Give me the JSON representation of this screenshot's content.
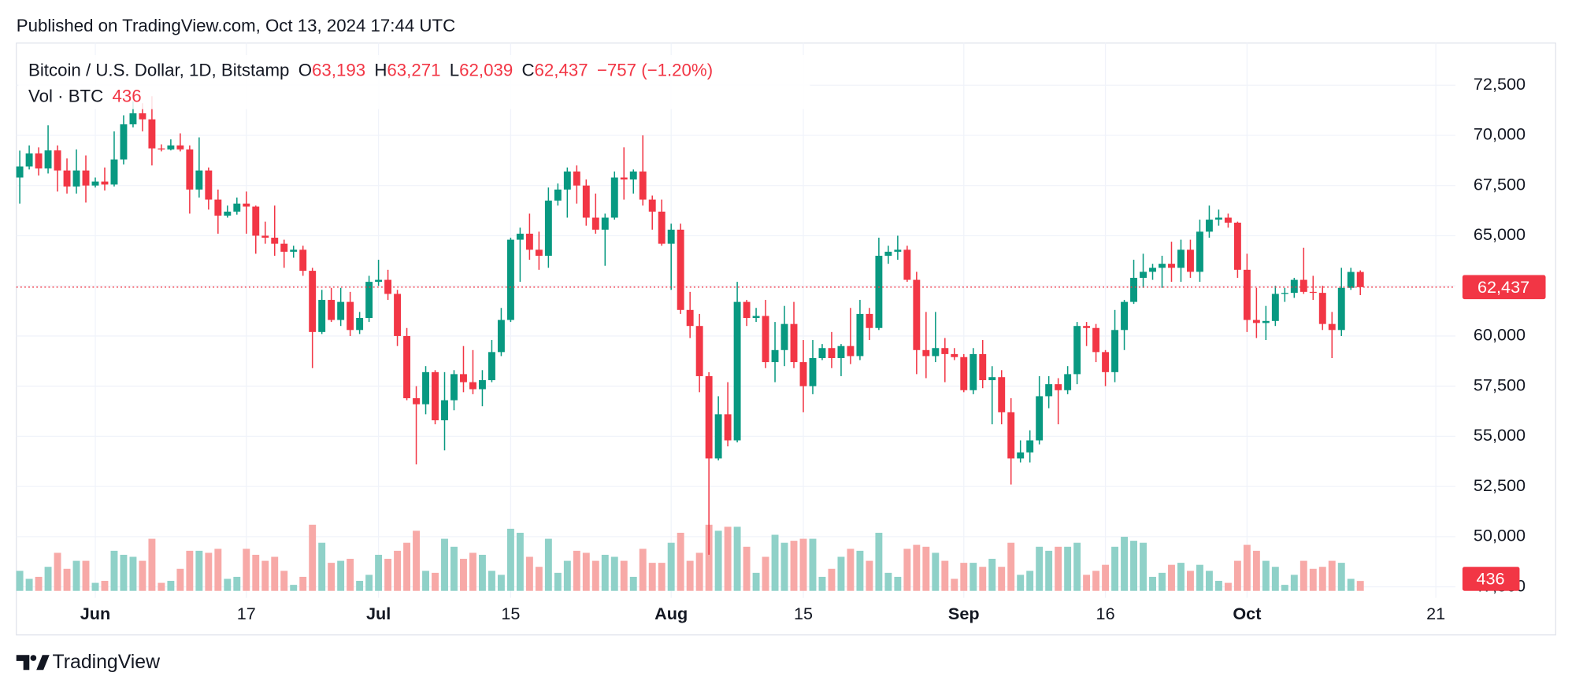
{
  "published": "Published on TradingView.com, Oct 13, 2024 17:44 UTC",
  "footer": "TradingView",
  "chart_data": {
    "type": "candlestick",
    "symbol": "Bitcoin / U.S. Dollar, 1D, Bitstamp",
    "legend": [
      {
        "key": "O",
        "value": "63,193"
      },
      {
        "key": "H",
        "value": "63,271"
      },
      {
        "key": "L",
        "value": "62,039"
      },
      {
        "key": "C",
        "value": "62,437"
      }
    ],
    "change": "−757 (−1.20%)",
    "volume_title": "Vol · BTC",
    "last_price_label": "62,437",
    "up_color": "#089981",
    "down_color": "#f23645",
    "volume_up_color": "#8fd1c8",
    "volume_down_color": "#f7a9a7",
    "grid": true,
    "xlim": [
      "2024-05-23",
      "2024-10-24"
    ],
    "xticks": [
      {
        "value": "2024-06-01",
        "label": "Jun"
      },
      {
        "value": "2024-06-17",
        "label": "17"
      },
      {
        "value": "2024-07-01",
        "label": "Jul"
      },
      {
        "value": "2024-07-15",
        "label": "15"
      },
      {
        "value": "2024-08-01",
        "label": "Aug"
      },
      {
        "value": "2024-08-15",
        "label": "15"
      },
      {
        "value": "2024-09-01",
        "label": "Sep"
      },
      {
        "value": "2024-09-16",
        "label": "16"
      },
      {
        "value": "2024-10-01",
        "label": "Oct"
      },
      {
        "value": "2024-10-21",
        "label": "21"
      }
    ],
    "ylim": [
      46950,
      74600
    ],
    "yticks": [
      {
        "value": 47500,
        "label": "47,500"
      },
      {
        "value": 50000,
        "label": "50,000"
      },
      {
        "value": 52500,
        "label": "52,500"
      },
      {
        "value": 55000,
        "label": "55,000"
      },
      {
        "value": 57500,
        "label": "57,500"
      },
      {
        "value": 60000,
        "label": "60,000"
      },
      {
        "value": 62500,
        "label": "62,500"
      },
      {
        "value": 65000,
        "label": "65,000"
      },
      {
        "value": 67500,
        "label": "67,500"
      },
      {
        "value": 70000,
        "label": "70,000"
      },
      {
        "value": 72500,
        "label": "72,500"
      }
    ],
    "volume_ylim": [
      0,
      6600
    ],
    "x": [
      "2024-05-24",
      "2024-05-25",
      "2024-05-26",
      "2024-05-27",
      "2024-05-28",
      "2024-05-29",
      "2024-05-30",
      "2024-05-31",
      "2024-06-01",
      "2024-06-02",
      "2024-06-03",
      "2024-06-04",
      "2024-06-05",
      "2024-06-06",
      "2024-06-07",
      "2024-06-08",
      "2024-06-09",
      "2024-06-10",
      "2024-06-11",
      "2024-06-12",
      "2024-06-13",
      "2024-06-14",
      "2024-06-15",
      "2024-06-16",
      "2024-06-17",
      "2024-06-18",
      "2024-06-19",
      "2024-06-20",
      "2024-06-21",
      "2024-06-22",
      "2024-06-23",
      "2024-06-24",
      "2024-06-25",
      "2024-06-26",
      "2024-06-27",
      "2024-06-28",
      "2024-06-29",
      "2024-06-30",
      "2024-07-01",
      "2024-07-02",
      "2024-07-03",
      "2024-07-04",
      "2024-07-05",
      "2024-07-06",
      "2024-07-07",
      "2024-07-08",
      "2024-07-09",
      "2024-07-10",
      "2024-07-11",
      "2024-07-12",
      "2024-07-13",
      "2024-07-14",
      "2024-07-15",
      "2024-07-16",
      "2024-07-17",
      "2024-07-18",
      "2024-07-19",
      "2024-07-20",
      "2024-07-21",
      "2024-07-22",
      "2024-07-23",
      "2024-07-24",
      "2024-07-25",
      "2024-07-26",
      "2024-07-27",
      "2024-07-28",
      "2024-07-29",
      "2024-07-30",
      "2024-07-31",
      "2024-08-01",
      "2024-08-02",
      "2024-08-03",
      "2024-08-04",
      "2024-08-05",
      "2024-08-06",
      "2024-08-07",
      "2024-08-08",
      "2024-08-09",
      "2024-08-10",
      "2024-08-11",
      "2024-08-12",
      "2024-08-13",
      "2024-08-14",
      "2024-08-15",
      "2024-08-16",
      "2024-08-17",
      "2024-08-18",
      "2024-08-19",
      "2024-08-20",
      "2024-08-21",
      "2024-08-22",
      "2024-08-23",
      "2024-08-24",
      "2024-08-25",
      "2024-08-26",
      "2024-08-27",
      "2024-08-28",
      "2024-08-29",
      "2024-08-30",
      "2024-08-31",
      "2024-09-01",
      "2024-09-02",
      "2024-09-03",
      "2024-09-04",
      "2024-09-05",
      "2024-09-06",
      "2024-09-07",
      "2024-09-08",
      "2024-09-09",
      "2024-09-10",
      "2024-09-11",
      "2024-09-12",
      "2024-09-13",
      "2024-09-14",
      "2024-09-15",
      "2024-09-16",
      "2024-09-17",
      "2024-09-18",
      "2024-09-19",
      "2024-09-20",
      "2024-09-21",
      "2024-09-22",
      "2024-09-23",
      "2024-09-24",
      "2024-09-25",
      "2024-09-26",
      "2024-09-27",
      "2024-09-28",
      "2024-09-29",
      "2024-09-30",
      "2024-10-01",
      "2024-10-02",
      "2024-10-03",
      "2024-10-04",
      "2024-10-05",
      "2024-10-06",
      "2024-10-07",
      "2024-10-08",
      "2024-10-09",
      "2024-10-10",
      "2024-10-11",
      "2024-10-12",
      "2024-10-13"
    ],
    "open": [
      67900,
      68450,
      69100,
      68350,
      69250,
      68250,
      67450,
      68250,
      67500,
      67700,
      67550,
      68800,
      70550,
      71100,
      70800,
      69350,
      69300,
      69500,
      69300,
      67300,
      68250,
      66800,
      66000,
      66200,
      66600,
      66450,
      65000,
      64900,
      64600,
      64200,
      64300,
      63250,
      60200,
      61800,
      60800,
      61700,
      60300,
      60900,
      62700,
      62800,
      62100,
      60000,
      56900,
      56600,
      58200,
      55800,
      56800,
      58100,
      57700,
      57350,
      57800,
      59200,
      60800,
      64800,
      65100,
      64300,
      64000,
      66750,
      67300,
      68200,
      67500,
      65900,
      65300,
      65900,
      67900,
      67800,
      68200,
      66800,
      66200,
      64600,
      65300,
      61300,
      60500,
      58000,
      53900,
      56100,
      54800,
      61700,
      60900,
      61000,
      58700,
      59300,
      60600,
      58700,
      57500,
      58900,
      59400,
      58900,
      59500,
      59000,
      61100,
      60400,
      64000,
      64200,
      64300,
      62800,
      59300,
      59000,
      59400,
      59100,
      58950,
      57300,
      59100,
      57800,
      57950,
      56200,
      53900,
      54200,
      54800,
      57000,
      57600,
      57300,
      58100,
      60500,
      60400,
      59200,
      58200,
      60300,
      61700,
      62900,
      63200,
      63400,
      63600,
      63400,
      64300,
      63200,
      65200,
      65800,
      65900,
      65650,
      63300,
      60800,
      60650,
      60750,
      62100,
      62150,
      62800,
      62200,
      62150,
      60600,
      60300,
      62400,
      63193
    ],
    "high": [
      69240,
      69500,
      69400,
      70500,
      69500,
      68850,
      69300,
      69000,
      67900,
      68400,
      70200,
      71000,
      71700,
      71600,
      71950,
      69550,
      69800,
      70100,
      69500,
      69900,
      68400,
      67300,
      66500,
      66900,
      67200,
      66500,
      65700,
      66500,
      64800,
      64500,
      64500,
      63400,
      62300,
      62400,
      62400,
      62200,
      61200,
      63000,
      63800,
      63300,
      62300,
      60400,
      57500,
      58500,
      58300,
      58200,
      58300,
      59500,
      59300,
      58300,
      59800,
      61400,
      64900,
      65400,
      66100,
      65200,
      67400,
      67600,
      68400,
      68500,
      67800,
      67100,
      66100,
      68200,
      69400,
      68300,
      70000,
      67000,
      66800,
      65600,
      65600,
      62200,
      61100,
      58200,
      57000,
      57700,
      62700,
      61800,
      61400,
      61800,
      60700,
      61500,
      61700,
      59800,
      59800,
      59600,
      60200,
      59600,
      61400,
      61800,
      61400,
      64900,
      64500,
      65000,
      64500,
      63200,
      61200,
      61200,
      59900,
      59400,
      59100,
      59400,
      59800,
      58500,
      58300,
      56900,
      54800,
      55300,
      58000,
      58000,
      57900,
      58500,
      60700,
      60700,
      60600,
      59300,
      61300,
      61800,
      63800,
      64100,
      63600,
      64000,
      64700,
      64800,
      64800,
      65800,
      66500,
      66300,
      66100,
      65700,
      64100,
      62400,
      61500,
      62500,
      62400,
      62900,
      64400,
      63000,
      62500,
      61200,
      63400,
      63400,
      63271
    ],
    "low": [
      66600,
      68300,
      68000,
      68100,
      67200,
      67100,
      67100,
      66650,
      67400,
      67250,
      67450,
      68550,
      70400,
      70200,
      68500,
      69200,
      69250,
      69200,
      66100,
      66900,
      66300,
      65100,
      65900,
      66050,
      65100,
      64100,
      64600,
      64000,
      63400,
      63900,
      63000,
      58400,
      60100,
      60700,
      60500,
      60000,
      60100,
      60700,
      62500,
      61800,
      59500,
      56800,
      53600,
      56100,
      55600,
      54300,
      56300,
      57200,
      57100,
      56500,
      57700,
      59000,
      60700,
      62700,
      63800,
      63300,
      63400,
      66500,
      65900,
      66600,
      65500,
      65100,
      63500,
      65800,
      66800,
      67100,
      66500,
      65300,
      64500,
      62300,
      61100,
      59900,
      57200,
      49100,
      53800,
      54500,
      54700,
      60500,
      60700,
      58400,
      57700,
      58500,
      58400,
      56200,
      57100,
      58800,
      58400,
      58000,
      58600,
      58800,
      59800,
      60300,
      63600,
      63800,
      62700,
      58100,
      57900,
      58700,
      57700,
      58800,
      57200,
      57100,
      57400,
      55600,
      55600,
      52600,
      53700,
      53700,
      54600,
      56400,
      55600,
      57100,
      57600,
      59500,
      58700,
      57500,
      57700,
      59300,
      61600,
      62400,
      62800,
      62400,
      62700,
      62700,
      62900,
      62700,
      64900,
      65500,
      65400,
      62900,
      60200,
      59900,
      59800,
      60500,
      61700,
      61900,
      62100,
      61800,
      60300,
      58900,
      60000,
      62300,
      62039
    ],
    "close": [
      68450,
      69100,
      68350,
      69250,
      68250,
      67450,
      68250,
      67500,
      67700,
      67550,
      68800,
      70550,
      71100,
      70800,
      69350,
      69300,
      69500,
      69300,
      67300,
      68250,
      66800,
      66000,
      66200,
      66600,
      66450,
      65000,
      64900,
      64600,
      64200,
      64300,
      63250,
      60200,
      61800,
      60800,
      61700,
      60300,
      60900,
      62700,
      62800,
      62100,
      60000,
      56900,
      56600,
      58200,
      55800,
      56800,
      58100,
      57700,
      57350,
      57800,
      59200,
      60800,
      64800,
      65100,
      64300,
      64000,
      66750,
      67300,
      68200,
      67500,
      65900,
      65300,
      65900,
      67900,
      67800,
      68200,
      66800,
      66200,
      64600,
      65300,
      61300,
      60500,
      58000,
      53900,
      56100,
      54800,
      61700,
      60900,
      61000,
      58700,
      59300,
      60600,
      58700,
      57500,
      58900,
      59400,
      58900,
      59500,
      59000,
      61100,
      60400,
      64000,
      64200,
      64300,
      62800,
      59300,
      59000,
      59400,
      59100,
      58950,
      57300,
      59100,
      57800,
      57950,
      56200,
      53900,
      54200,
      54800,
      57000,
      57600,
      57300,
      58100,
      60500,
      60400,
      59200,
      58200,
      60300,
      61700,
      62900,
      63200,
      63400,
      63600,
      63400,
      64300,
      63200,
      65200,
      65800,
      65900,
      65650,
      63300,
      60800,
      60650,
      60750,
      62100,
      62150,
      62800,
      62200,
      62150,
      60600,
      60300,
      62400,
      63193,
      62437
    ],
    "volume": [
      880,
      528,
      616,
      1056,
      1672,
      968,
      1320,
      1320,
      352,
      440,
      1760,
      1584,
      1496,
      1320,
      2288,
      352,
      440,
      968,
      1760,
      1760,
      1672,
      1848,
      528,
      616,
      1848,
      1584,
      1320,
      1496,
      880,
      264,
      616,
      2904,
      2112,
      1232,
      1320,
      1408,
      440,
      704,
      1584,
      1408,
      1760,
      2112,
      2640,
      880,
      792,
      2288,
      1936,
      1408,
      1672,
      1584,
      880,
      704,
      2728,
      2552,
      1496,
      1056,
      2288,
      792,
      1320,
      1760,
      1672,
      1320,
      1584,
      1496,
      1320,
      616,
      1848,
      1232,
      1232,
      2112,
      2552,
      1320,
      1672,
      2904,
      2640,
      2816,
      2816,
      1936,
      792,
      1496,
      2464,
      2112,
      2200,
      2288,
      2288,
      616,
      968,
      1496,
      1848,
      1760,
      1320,
      2552,
      792,
      616,
      1848,
      2024,
      1936,
      1672,
      1320,
      528,
      1232,
      1232,
      1056,
      1408,
      1056,
      2112,
      704,
      880,
      1936,
      1760,
      1936,
      1936,
      2112,
      704,
      880,
      1144,
      1936,
      2376,
      2200,
      2112,
      616,
      792,
      1144,
      1232,
      880,
      1144,
      880,
      440,
      352,
      1320,
      2024,
      1760,
      1320,
      1056,
      264,
      704,
      1320,
      968,
      1056,
      1320,
      1232,
      528,
      436
    ]
  }
}
